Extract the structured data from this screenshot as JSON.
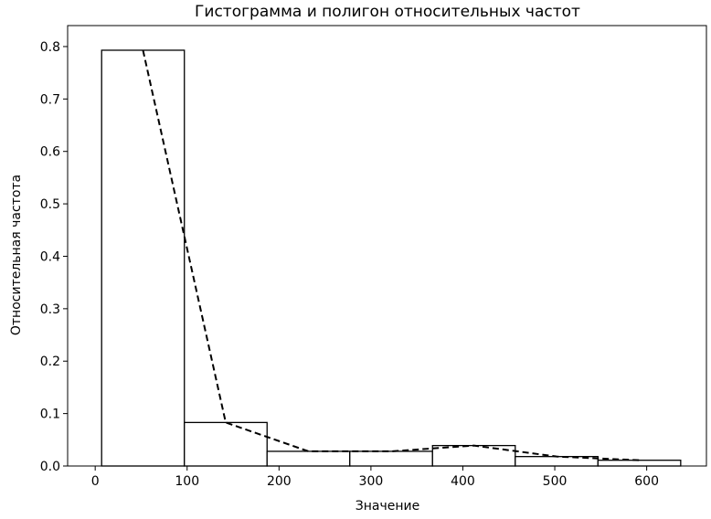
{
  "chart_data": {
    "type": "bar",
    "title": "Гистограмма и полигон относительных частот",
    "xlabel": "Значение",
    "ylabel": "Относительная частота",
    "xlim": [
      -30,
      665
    ],
    "ylim": [
      0,
      0.84
    ],
    "grid": false,
    "legend": "none",
    "xticks": [
      0,
      100,
      200,
      300,
      400,
      500,
      600
    ],
    "yticks": [
      0.0,
      0.1,
      0.2,
      0.3,
      0.4,
      0.5,
      0.6,
      0.7,
      0.8
    ],
    "bins": [
      {
        "start": 7,
        "end": 97,
        "value": 0.793
      },
      {
        "start": 97,
        "end": 187,
        "value": 0.083
      },
      {
        "start": 187,
        "end": 277,
        "value": 0.028
      },
      {
        "start": 277,
        "end": 367,
        "value": 0.028
      },
      {
        "start": 367,
        "end": 457,
        "value": 0.039
      },
      {
        "start": 457,
        "end": 547,
        "value": 0.018
      },
      {
        "start": 547,
        "end": 637,
        "value": 0.011
      }
    ],
    "polygon": {
      "style": "dashed",
      "x": [
        52,
        142,
        232,
        322,
        412,
        502,
        592
      ],
      "y": [
        0.793,
        0.083,
        0.028,
        0.028,
        0.039,
        0.018,
        0.011
      ]
    },
    "colors": {
      "bar_fill": "#ffffff",
      "bar_edge": "#000000",
      "polygon": "#000000"
    }
  }
}
